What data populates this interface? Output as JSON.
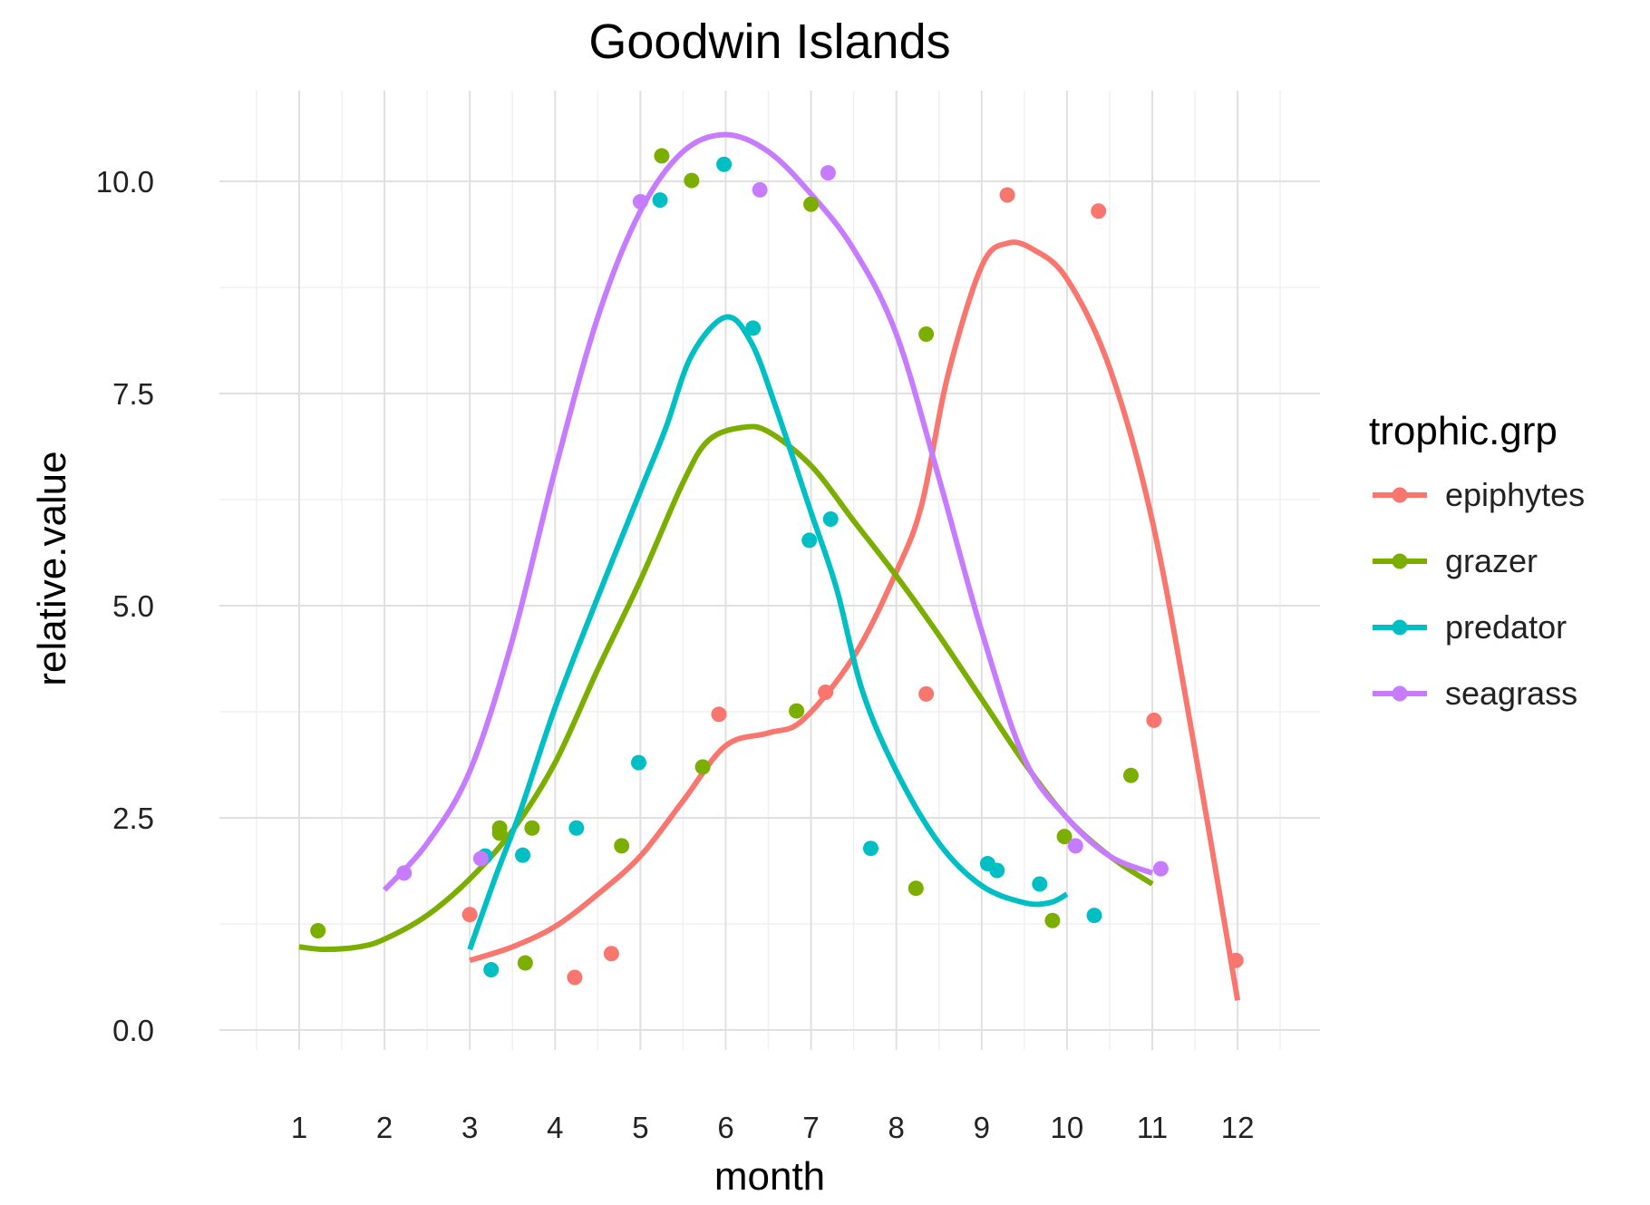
{
  "chart_data": {
    "type": "scatter",
    "title": "Goodwin Islands",
    "xlabel": "month",
    "ylabel": "relative.value",
    "xlim": [
      0.05,
      12.95
    ],
    "ylim": [
      -0.1,
      11.0
    ],
    "x_ticks": [
      1,
      2,
      3,
      4,
      5,
      6,
      7,
      8,
      9,
      10,
      11,
      12
    ],
    "y_ticks": [
      0,
      2.5,
      5,
      7.5,
      10
    ],
    "y_tick_labels": [
      "0.0",
      "2.5",
      "5.0",
      "7.5",
      "10.0"
    ],
    "grid": true,
    "legend": {
      "title": "trophic.grp",
      "position": "right"
    },
    "series": [
      {
        "name": "epiphytes",
        "color": "#F8766D",
        "points": [
          [
            3.0,
            1.36
          ],
          [
            4.23,
            0.62
          ],
          [
            4.66,
            0.9
          ],
          [
            5.92,
            3.72
          ],
          [
            7.17,
            3.98
          ],
          [
            8.35,
            3.96
          ],
          [
            9.3,
            9.84
          ],
          [
            10.37,
            9.65
          ],
          [
            11.02,
            3.65
          ],
          [
            11.98,
            0.82
          ]
        ],
        "smooth": [
          [
            3.0,
            0.82
          ],
          [
            3.5,
            0.98
          ],
          [
            4.0,
            1.22
          ],
          [
            4.5,
            1.6
          ],
          [
            5.0,
            2.05
          ],
          [
            5.5,
            2.7
          ],
          [
            6.0,
            3.35
          ],
          [
            6.5,
            3.5
          ],
          [
            6.9,
            3.65
          ],
          [
            7.5,
            4.4
          ],
          [
            8.0,
            5.4
          ],
          [
            8.3,
            6.2
          ],
          [
            8.6,
            7.7
          ],
          [
            9.0,
            9.0
          ],
          [
            9.3,
            9.27
          ],
          [
            9.6,
            9.2
          ],
          [
            10.0,
            8.85
          ],
          [
            10.5,
            7.8
          ],
          [
            11.0,
            6.0
          ],
          [
            11.5,
            3.3
          ],
          [
            12.0,
            0.35
          ]
        ]
      },
      {
        "name": "grazer",
        "color": "#7CAE00",
        "points": [
          [
            1.22,
            1.17
          ],
          [
            3.35,
            2.32
          ],
          [
            3.35,
            2.38
          ],
          [
            3.65,
            0.79
          ],
          [
            3.73,
            2.38
          ],
          [
            4.78,
            2.17
          ],
          [
            5.25,
            10.3
          ],
          [
            5.6,
            10.01
          ],
          [
            5.73,
            3.1
          ],
          [
            6.83,
            3.76
          ],
          [
            7.0,
            9.73
          ],
          [
            8.23,
            1.67
          ],
          [
            8.35,
            8.2
          ],
          [
            9.83,
            1.29
          ],
          [
            9.97,
            2.28
          ],
          [
            10.75,
            3.0
          ]
        ],
        "smooth": [
          [
            1.0,
            0.98
          ],
          [
            1.3,
            0.95
          ],
          [
            1.7,
            0.98
          ],
          [
            2.0,
            1.07
          ],
          [
            2.5,
            1.35
          ],
          [
            3.0,
            1.78
          ],
          [
            3.5,
            2.35
          ],
          [
            4.0,
            3.15
          ],
          [
            4.5,
            4.25
          ],
          [
            5.0,
            5.3
          ],
          [
            5.5,
            6.45
          ],
          [
            5.8,
            6.95
          ],
          [
            6.2,
            7.1
          ],
          [
            6.5,
            7.05
          ],
          [
            7.0,
            6.65
          ],
          [
            7.5,
            6.0
          ],
          [
            8.0,
            5.35
          ],
          [
            8.5,
            4.65
          ],
          [
            9.0,
            3.9
          ],
          [
            9.5,
            3.15
          ],
          [
            10.0,
            2.5
          ],
          [
            10.5,
            2.05
          ],
          [
            11.0,
            1.72
          ]
        ]
      },
      {
        "name": "predator",
        "color": "#00BFC4",
        "points": [
          [
            3.18,
            2.05
          ],
          [
            3.25,
            0.71
          ],
          [
            3.62,
            2.06
          ],
          [
            4.25,
            2.38
          ],
          [
            4.98,
            3.15
          ],
          [
            5.23,
            9.78
          ],
          [
            5.98,
            10.2
          ],
          [
            6.32,
            8.27
          ],
          [
            6.98,
            5.77
          ],
          [
            7.23,
            6.02
          ],
          [
            7.7,
            2.14
          ],
          [
            9.07,
            1.96
          ],
          [
            9.18,
            1.88
          ],
          [
            9.68,
            1.72
          ],
          [
            10.32,
            1.35
          ]
        ],
        "smooth": [
          [
            3.0,
            0.95
          ],
          [
            3.3,
            1.8
          ],
          [
            3.6,
            2.6
          ],
          [
            4.0,
            3.8
          ],
          [
            4.5,
            5.1
          ],
          [
            5.0,
            6.35
          ],
          [
            5.3,
            7.1
          ],
          [
            5.6,
            7.95
          ],
          [
            6.0,
            8.4
          ],
          [
            6.3,
            8.1
          ],
          [
            6.6,
            7.3
          ],
          [
            7.0,
            6.1
          ],
          [
            7.3,
            5.2
          ],
          [
            7.6,
            4.0
          ],
          [
            8.0,
            3.05
          ],
          [
            8.5,
            2.2
          ],
          [
            9.0,
            1.7
          ],
          [
            9.5,
            1.5
          ],
          [
            9.8,
            1.5
          ],
          [
            10.0,
            1.6
          ]
        ]
      },
      {
        "name": "seagrass",
        "color": "#C77CFF",
        "points": [
          [
            2.23,
            1.85
          ],
          [
            3.13,
            2.02
          ],
          [
            5.0,
            9.76
          ],
          [
            6.4,
            9.9
          ],
          [
            7.2,
            10.1
          ],
          [
            10.1,
            2.17
          ],
          [
            11.1,
            1.9
          ]
        ],
        "smooth": [
          [
            2.0,
            1.65
          ],
          [
            2.5,
            2.2
          ],
          [
            3.0,
            3.05
          ],
          [
            3.5,
            4.6
          ],
          [
            4.0,
            6.6
          ],
          [
            4.5,
            8.4
          ],
          [
            5.0,
            9.65
          ],
          [
            5.5,
            10.35
          ],
          [
            6.0,
            10.55
          ],
          [
            6.5,
            10.35
          ],
          [
            7.0,
            9.85
          ],
          [
            7.5,
            9.2
          ],
          [
            8.0,
            8.2
          ],
          [
            8.5,
            6.5
          ],
          [
            9.0,
            4.7
          ],
          [
            9.5,
            3.2
          ],
          [
            10.0,
            2.5
          ],
          [
            10.5,
            2.05
          ],
          [
            11.0,
            1.85
          ]
        ]
      }
    ]
  }
}
